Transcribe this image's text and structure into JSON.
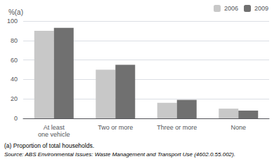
{
  "chart_data": {
    "type": "bar",
    "categories": [
      "At least\none vehicle",
      "Two or more",
      "Three or more",
      "None"
    ],
    "series": [
      {
        "name": "2006",
        "color": "#c8c8c8",
        "values": [
          90,
          50,
          16,
          10
        ]
      },
      {
        "name": "2009",
        "color": "#707070",
        "values": [
          93,
          55,
          19,
          8
        ]
      }
    ],
    "ylabel": "%(a)",
    "ylim": [
      0,
      100
    ],
    "yticks": [
      0,
      20,
      40,
      60,
      80,
      100
    ],
    "grid": true,
    "legend": "upper right",
    "annotations": [
      "(a) Proportion of total households.",
      "Source: ABS Environmental Issues: Waste Management and Transport Use (4602.0.55.002)."
    ]
  }
}
